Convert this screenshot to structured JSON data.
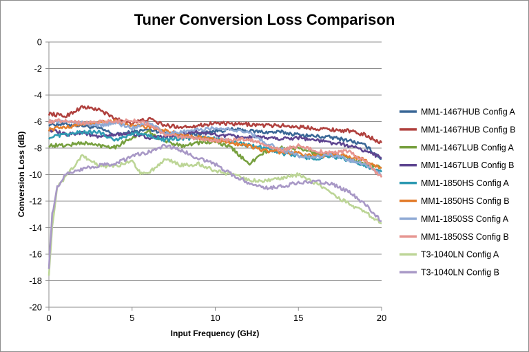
{
  "chart_data": {
    "type": "line",
    "title": "Tuner Conversion Loss Comparison",
    "xlabel": "Input Frequency (GHz)",
    "ylabel": "Conversion Loss (dB)",
    "xlim": [
      0,
      20
    ],
    "ylim": [
      -20,
      0
    ],
    "x_ticks": [
      "0",
      "5",
      "10",
      "15",
      "20"
    ],
    "y_ticks": [
      "0",
      "-2",
      "-4",
      "-6",
      "-8",
      "-10",
      "-12",
      "-14",
      "-16",
      "-18",
      "-20"
    ],
    "grid": "horizontal",
    "legend_position": "right",
    "series": [
      {
        "name": "MM1-1467HUB Config A",
        "color": "#3a6796",
        "x": [
          0,
          1,
          2,
          3,
          4,
          5,
          6,
          7,
          8,
          9,
          10,
          11,
          12,
          13,
          14,
          15,
          16,
          17,
          18,
          19,
          20
        ],
        "y": [
          -6.2,
          -6.2,
          -6.3,
          -6.5,
          -7.0,
          -6.8,
          -6.6,
          -6.8,
          -7.1,
          -6.9,
          -6.7,
          -6.6,
          -6.7,
          -6.8,
          -6.8,
          -7.0,
          -7.1,
          -7.2,
          -7.4,
          -7.8,
          -8.8
        ]
      },
      {
        "name": "MM1-1467HUB Config B",
        "color": "#b0413e",
        "x": [
          0,
          1,
          2,
          3,
          4,
          5,
          6,
          7,
          8,
          9,
          10,
          11,
          12,
          13,
          14,
          15,
          16,
          17,
          18,
          19,
          20
        ],
        "y": [
          -5.4,
          -5.6,
          -4.9,
          -5.1,
          -5.8,
          -6.1,
          -5.8,
          -6.3,
          -6.4,
          -6.3,
          -6.1,
          -6.2,
          -6.2,
          -6.3,
          -6.3,
          -6.4,
          -6.5,
          -6.6,
          -6.7,
          -7.0,
          -7.6
        ]
      },
      {
        "name": "MM1-1467LUB Config A",
        "color": "#77a03f",
        "x": [
          0,
          1,
          2,
          3,
          4,
          5,
          6,
          7,
          8,
          9,
          10,
          11,
          12,
          13,
          14,
          15,
          16,
          17,
          18,
          19,
          20
        ],
        "y": [
          -7.8,
          -7.8,
          -7.6,
          -7.8,
          -7.9,
          -7.2,
          -6.8,
          -7.5,
          -7.8,
          -7.6,
          -7.5,
          -8.0,
          -9.2,
          -8.3,
          -8.0,
          -8.0,
          -8.4,
          -8.5,
          -8.8,
          -9.2,
          -9.5
        ]
      },
      {
        "name": "MM1-1467LUB Config B",
        "color": "#5e4590",
        "x": [
          0,
          1,
          2,
          3,
          4,
          5,
          6,
          7,
          8,
          9,
          10,
          11,
          12,
          13,
          14,
          15,
          16,
          17,
          18,
          19,
          20
        ],
        "y": [
          -6.6,
          -7.0,
          -6.8,
          -7.2,
          -7.0,
          -6.9,
          -7.2,
          -7.2,
          -6.9,
          -6.8,
          -7.0,
          -7.1,
          -7.2,
          -7.2,
          -7.3,
          -7.2,
          -7.4,
          -7.6,
          -7.8,
          -8.2,
          -8.7
        ]
      },
      {
        "name": "MM1-1850HS Config A",
        "color": "#2e9ab2",
        "x": [
          0,
          1,
          2,
          3,
          4,
          5,
          6,
          7,
          8,
          9,
          10,
          11,
          12,
          13,
          14,
          15,
          16,
          17,
          18,
          19,
          20
        ],
        "y": [
          -7.2,
          -7.0,
          -6.8,
          -6.8,
          -7.4,
          -6.9,
          -7.0,
          -7.4,
          -7.3,
          -7.2,
          -7.3,
          -7.5,
          -7.8,
          -8.0,
          -8.4,
          -8.6,
          -8.8,
          -8.6,
          -8.9,
          -9.3,
          -9.8
        ]
      },
      {
        "name": "MM1-1850HS Config B",
        "color": "#e37e2e",
        "x": [
          0,
          1,
          2,
          3,
          4,
          5,
          6,
          7,
          8,
          9,
          10,
          11,
          12,
          13,
          14,
          15,
          16,
          17,
          18,
          19,
          20
        ],
        "y": [
          -6.6,
          -6.4,
          -6.2,
          -6.1,
          -6.0,
          -6.3,
          -6.4,
          -6.7,
          -7.0,
          -7.2,
          -7.4,
          -7.6,
          -7.8,
          -8.2,
          -8.3,
          -8.4,
          -8.6,
          -8.5,
          -8.6,
          -8.9,
          -9.5
        ]
      },
      {
        "name": "MM1-1850SS Config A",
        "color": "#8faad5",
        "x": [
          0,
          1,
          2,
          3,
          4,
          5,
          6,
          7,
          8,
          9,
          10,
          11,
          12,
          13,
          14,
          15,
          16,
          17,
          18,
          19,
          20
        ],
        "y": [
          -6.0,
          -6.0,
          -6.1,
          -6.3,
          -6.1,
          -6.5,
          -6.0,
          -6.9,
          -6.8,
          -6.6,
          -6.5,
          -6.6,
          -6.8,
          -7.6,
          -8.1,
          -8.6,
          -8.7,
          -8.5,
          -8.9,
          -9.2,
          -10.0
        ]
      },
      {
        "name": "MM1-1850SS Config B",
        "color": "#e69590",
        "x": [
          0,
          1,
          2,
          3,
          4,
          5,
          6,
          7,
          8,
          9,
          10,
          11,
          12,
          13,
          14,
          15,
          16,
          17,
          18,
          19,
          20
        ],
        "y": [
          -6.0,
          -5.9,
          -6.1,
          -6.0,
          -6.0,
          -5.9,
          -6.2,
          -7.0,
          -7.2,
          -7.3,
          -7.4,
          -7.4,
          -7.3,
          -7.8,
          -8.2,
          -7.8,
          -8.2,
          -8.4,
          -8.2,
          -9.0,
          -10.2
        ]
      },
      {
        "name": "T3-1040LN Config A",
        "color": "#bcd596",
        "x": [
          0,
          0.2,
          0.5,
          1,
          2,
          3,
          4,
          5,
          5.5,
          6,
          7,
          8,
          9,
          10,
          11,
          12,
          13,
          14,
          15,
          16,
          17,
          18,
          19,
          20
        ],
        "y": [
          -17.5,
          -14.0,
          -11.0,
          -10.2,
          -8.6,
          -9.3,
          -9.4,
          -8.9,
          -9.9,
          -9.9,
          -8.8,
          -9.3,
          -9.2,
          -9.7,
          -10.0,
          -10.4,
          -10.5,
          -10.3,
          -10.0,
          -10.6,
          -11.4,
          -12.2,
          -12.8,
          -13.7
        ]
      },
      {
        "name": "T3-1040LN Config B",
        "color": "#a898c6",
        "x": [
          0,
          0.2,
          0.5,
          1,
          2,
          3,
          4,
          5,
          6,
          7,
          8,
          9,
          10,
          11,
          12,
          13,
          14,
          15,
          16,
          17,
          18,
          19,
          20
        ],
        "y": [
          -17.0,
          -13.0,
          -11.0,
          -9.9,
          -9.6,
          -9.3,
          -9.2,
          -8.6,
          -8.3,
          -7.8,
          -8.2,
          -8.8,
          -9.2,
          -10.0,
          -10.6,
          -11.0,
          -10.9,
          -10.6,
          -10.5,
          -10.7,
          -11.3,
          -12.2,
          -13.5
        ]
      }
    ]
  }
}
